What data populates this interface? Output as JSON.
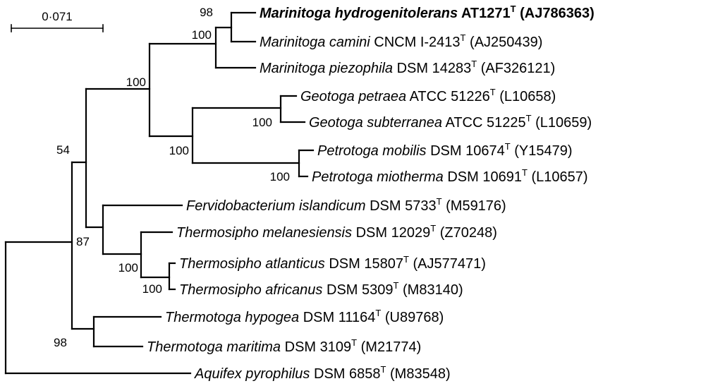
{
  "scale_bar": {
    "label": "0·071"
  },
  "bootstrap": {
    "b98_marinitoga": "98",
    "b100_marinitoga": "100",
    "b100_top": "100",
    "b100_geotoga": "100",
    "b100_geo_petro": "100",
    "b100_petrotoga": "100",
    "b54": "54",
    "b87": "87",
    "b100_thermosipho": "100",
    "b100_thermosipho_inner": "100",
    "b98_thermotoga": "98"
  },
  "taxa": [
    {
      "genus_species": "Marinitoga hydrogenitolerans",
      "strain": " AT1271",
      "sup": "T",
      "accession": " (AJ786363)"
    },
    {
      "genus_species": "Marinitoga camini",
      "strain": " CNCM I-2413",
      "sup": "T",
      "accession": " (AJ250439)"
    },
    {
      "genus_species": "Marinitoga piezophila",
      "strain": " DSM 14283",
      "sup": "T",
      "accession": " (AF326121)"
    },
    {
      "genus_species": "Geotoga petraea",
      "strain": " ATCC 51226",
      "sup": "T",
      "accession": " (L10658)"
    },
    {
      "genus_species": "Geotoga subterranea",
      "strain": " ATCC 51225",
      "sup": "T",
      "accession": " (L10659)"
    },
    {
      "genus_species": "Petrotoga mobilis",
      "strain": " DSM 10674",
      "sup": "T",
      "accession": " (Y15479)"
    },
    {
      "genus_species": "Petrotoga miotherma",
      "strain": " DSM 10691",
      "sup": "T",
      "accession": " (L10657)"
    },
    {
      "genus_species": "Fervidobacterium islandicum",
      "strain": " DSM 5733",
      "sup": "T",
      "accession": " (M59176)"
    },
    {
      "genus_species": "Thermosipho melanesiensis",
      "strain": " DSM 12029",
      "sup": "T",
      "accession": " (Z70248)"
    },
    {
      "genus_species": "Thermosipho atlanticus",
      "strain": " DSM 15807",
      "sup": "T",
      "accession": " (AJ577471)"
    },
    {
      "genus_species": "Thermosipho africanus",
      "strain": " DSM 5309",
      "sup": "T",
      "accession": " (M83140)"
    },
    {
      "genus_species": "Thermotoga hypogea",
      "strain": " DSM 11164",
      "sup": "T",
      "accession": " (U89768)"
    },
    {
      "genus_species": "Thermotoga maritima",
      "strain": " DSM 3109",
      "sup": "T",
      "accession": " (M21774)"
    },
    {
      "genus_species": "Aquifex pyrophilus",
      "strain": " DSM 6858",
      "sup": "T",
      "accession": " (M83548)"
    }
  ]
}
